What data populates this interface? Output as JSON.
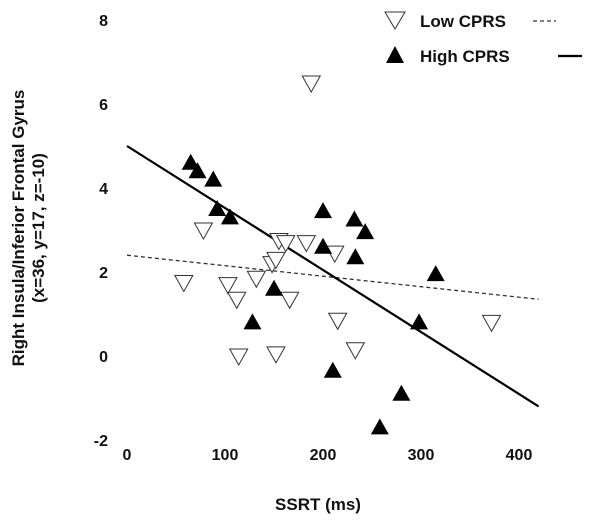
{
  "chart_data": {
    "type": "scatter",
    "xlabel": "SSRT (ms)",
    "ylabel": "Right Insula/Inferior Frontal Gyrus",
    "ylabel2": "(x=36, y=17, z=-10)",
    "xlim": [
      -25,
      425
    ],
    "ylim": [
      -2,
      8
    ],
    "xticks": [
      "0",
      "100",
      "200",
      "300",
      "400"
    ],
    "yticks": [
      "-2",
      "0",
      "2",
      "4",
      "6",
      "8"
    ],
    "grid": false,
    "legend_position": "top-right",
    "series": [
      {
        "name": "Low CPRS",
        "marker": "triangle-down-open",
        "line": "dashed",
        "fit": {
          "x": [
            0,
            420
          ],
          "y": [
            2.4,
            1.35
          ]
        },
        "points": [
          [
            58,
            1.75
          ],
          [
            78,
            3.0
          ],
          [
            103,
            1.7
          ],
          [
            112,
            1.35
          ],
          [
            114,
            0.0
          ],
          [
            132,
            1.85
          ],
          [
            148,
            2.2
          ],
          [
            152,
            2.3
          ],
          [
            155,
            2.75
          ],
          [
            152,
            0.05
          ],
          [
            162,
            2.7
          ],
          [
            166,
            1.35
          ],
          [
            183,
            2.7
          ],
          [
            188,
            6.5
          ],
          [
            212,
            2.45
          ],
          [
            215,
            0.85
          ],
          [
            233,
            0.15
          ],
          [
            372,
            0.8
          ]
        ]
      },
      {
        "name": "High CPRS",
        "marker": "triangle-up-filled",
        "line": "solid",
        "fit": {
          "x": [
            0,
            420
          ],
          "y": [
            5.0,
            -1.2
          ]
        },
        "points": [
          [
            65,
            4.6
          ],
          [
            72,
            4.4
          ],
          [
            88,
            4.2
          ],
          [
            92,
            3.5
          ],
          [
            105,
            3.3
          ],
          [
            128,
            0.8
          ],
          [
            150,
            1.6
          ],
          [
            200,
            3.45
          ],
          [
            200,
            2.6
          ],
          [
            210,
            -0.35
          ],
          [
            232,
            3.25
          ],
          [
            233,
            2.35
          ],
          [
            243,
            2.95
          ],
          [
            258,
            -1.7
          ],
          [
            280,
            -0.9
          ],
          [
            298,
            0.8
          ],
          [
            315,
            1.95
          ]
        ]
      }
    ]
  }
}
